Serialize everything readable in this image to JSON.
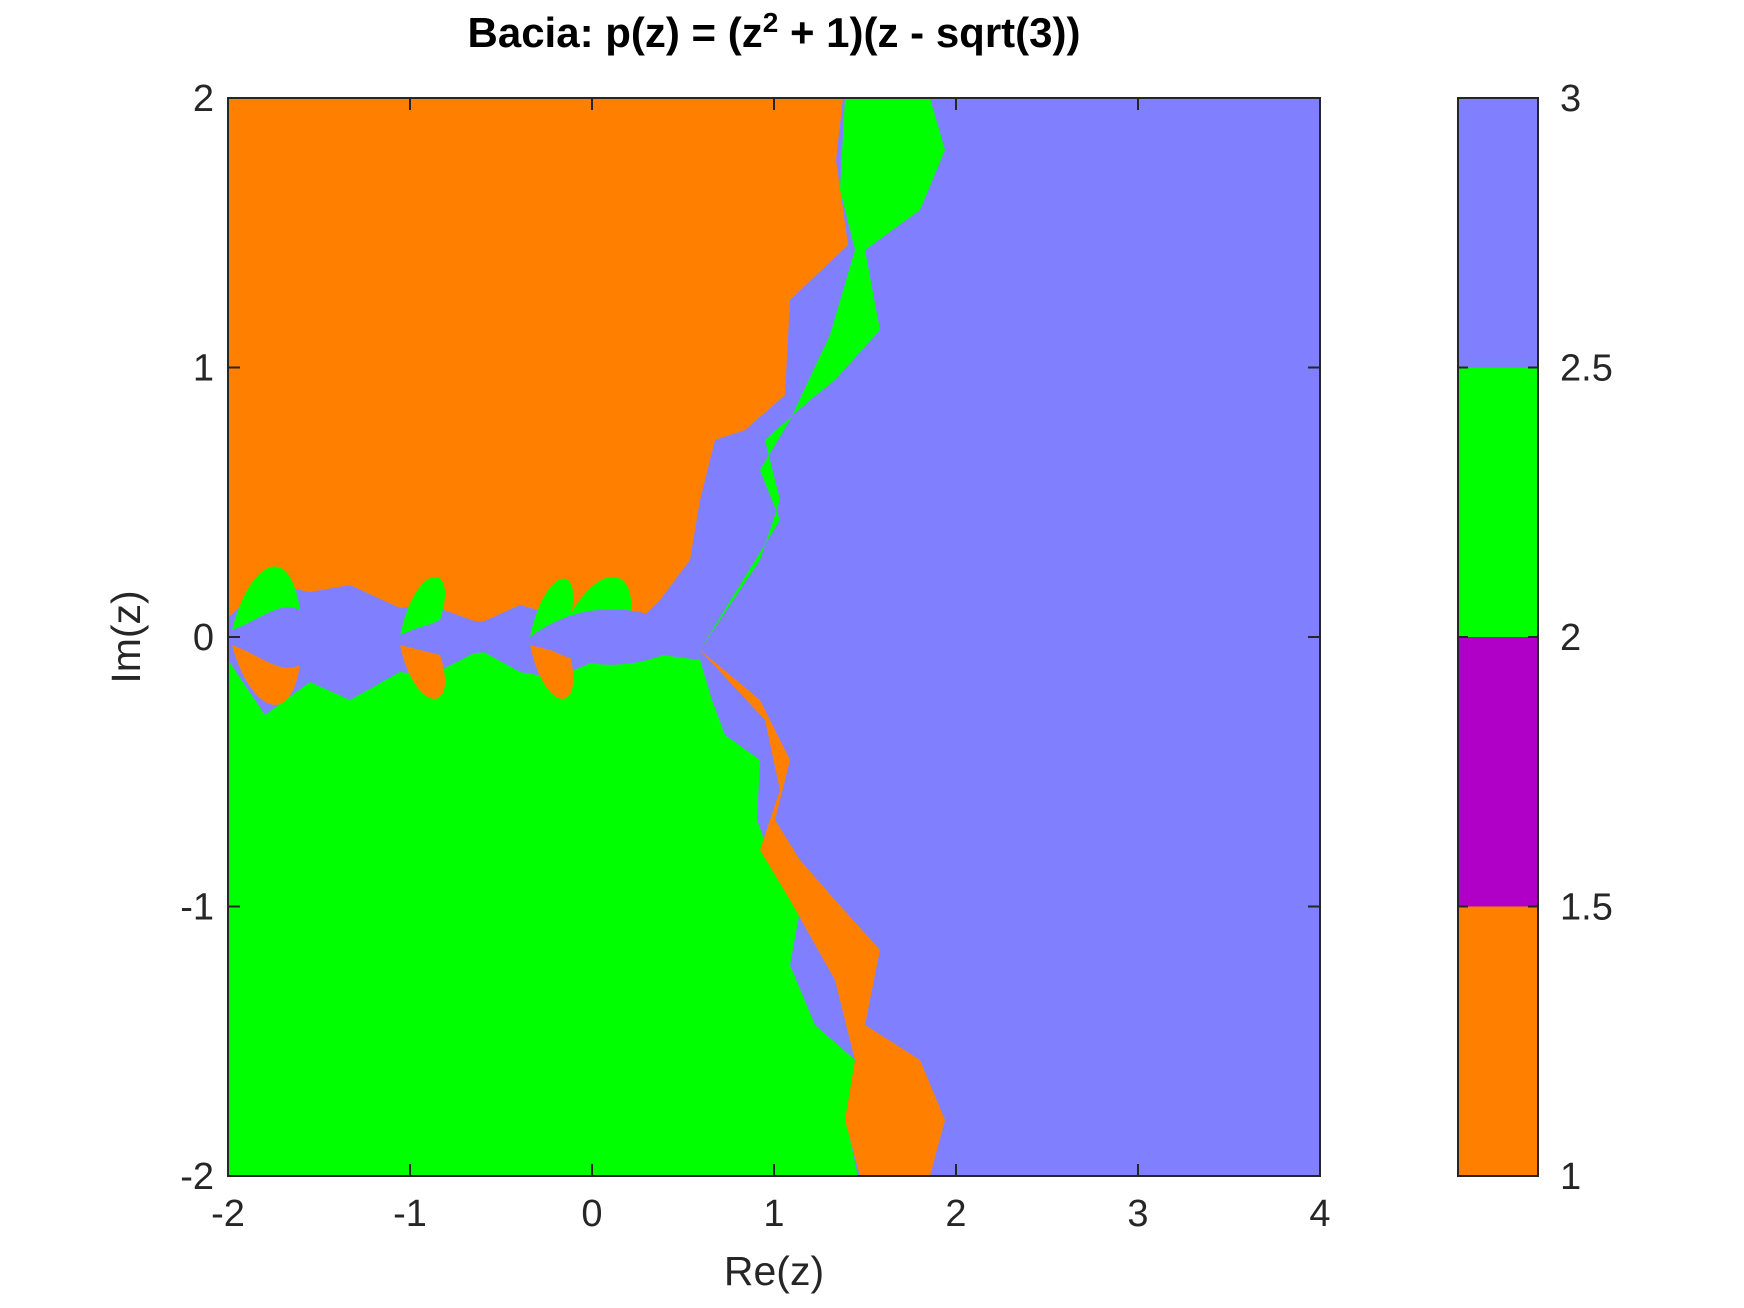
{
  "chart_data": [
    {
      "type": "heatmap",
      "title": {
        "prefix": "Bacia: p(z) = (z",
        "superscript": "2",
        "suffix": " + 1)(z - sqrt(3))"
      },
      "xlabel": "Re(z)",
      "ylabel": "Im(z)",
      "xlim": [
        -2,
        4
      ],
      "ylim": [
        -2,
        2
      ],
      "xticks": [
        -2,
        -1,
        0,
        1,
        2,
        3,
        4
      ],
      "yticks": [
        -2,
        -1,
        0,
        1,
        2
      ],
      "grid": false,
      "colormap": [
        {
          "value_range": [
            1,
            1.5
          ],
          "color": "#ff8000"
        },
        {
          "value_range": [
            1.5,
            2
          ],
          "color": "#b000c8"
        },
        {
          "value_range": [
            2,
            2.5
          ],
          "color": "#00ff00"
        },
        {
          "value_range": [
            2.5,
            3
          ],
          "color": "#8080ff"
        }
      ],
      "regions": {
        "basin_1_color": "#ff8000",
        "basin_2_color": "#00ff00",
        "basin_3_color": "#8080ff",
        "description": ""
      },
      "colorbar": {
        "ticks": [
          "1",
          "1.5",
          "2",
          "2.5",
          "3"
        ],
        "lim": [
          1,
          3
        ]
      }
    }
  ]
}
